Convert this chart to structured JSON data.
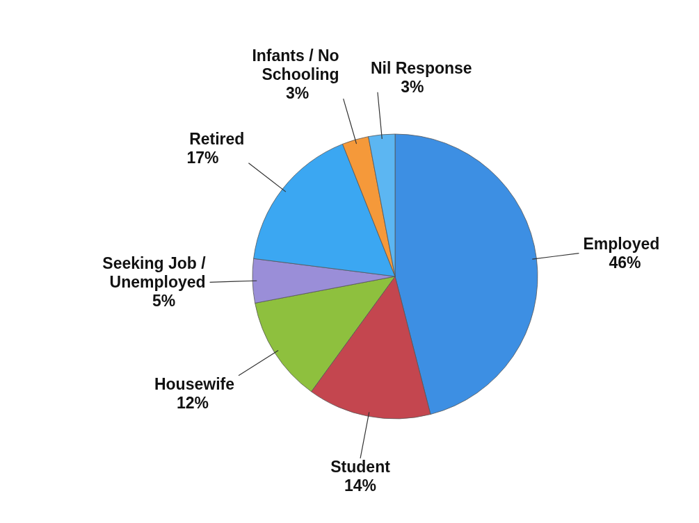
{
  "chart_data": {
    "type": "pie",
    "categories": [
      "Employed",
      "Student",
      "Housewife",
      "Seeking Job / Unemployed",
      "Retired",
      "Infants / No Schooling",
      "Nil Response"
    ],
    "values": [
      46,
      14,
      12,
      5,
      17,
      3,
      3
    ],
    "colors": [
      "#3d8fe3",
      "#c4464f",
      "#8ec03e",
      "#9a8ed8",
      "#3ba7f2",
      "#f5993a",
      "#5cb6f2"
    ],
    "value_labels": [
      "46%",
      "14%",
      "12%",
      "5%",
      "17%",
      "3%",
      "3%"
    ]
  }
}
